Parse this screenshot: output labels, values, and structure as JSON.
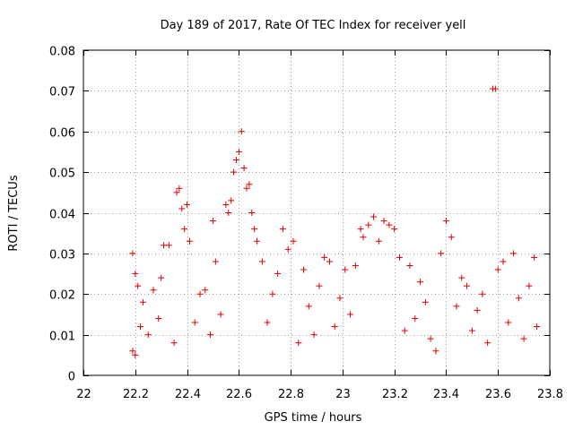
{
  "chart_data": {
    "type": "scatter",
    "title": "Day 189 of 2017, Rate Of TEC Index for receiver yell",
    "xlabel": "GPS time / hours",
    "ylabel": "ROTI / TECUs",
    "xlim": [
      22,
      23.8
    ],
    "ylim": [
      0,
      0.08
    ],
    "x_ticks": [
      22,
      22.2,
      22.4,
      22.6,
      22.8,
      23,
      23.2,
      23.4,
      23.6,
      23.8
    ],
    "x_tick_labels": [
      "22",
      "22.2",
      "22.4",
      "22.6",
      "22.8",
      "23",
      "23.2",
      "23.4",
      "23.6",
      "23.8"
    ],
    "y_ticks": [
      0,
      0.01,
      0.02,
      0.03,
      0.04,
      0.05,
      0.06,
      0.07,
      0.08
    ],
    "y_tick_labels": [
      "0",
      "0.01",
      "0.02",
      "0.03",
      "0.04",
      "0.05",
      "0.06",
      "0.07",
      "0.08"
    ],
    "grid": true,
    "marker": "+",
    "color": "#e00000",
    "series": [
      {
        "name": "ROTI",
        "points": [
          [
            22.19,
            0.03
          ],
          [
            22.19,
            0.006
          ],
          [
            22.2,
            0.005
          ],
          [
            22.2,
            0.025
          ],
          [
            22.21,
            0.022
          ],
          [
            22.22,
            0.012
          ],
          [
            22.23,
            0.018
          ],
          [
            22.25,
            0.01
          ],
          [
            22.27,
            0.021
          ],
          [
            22.29,
            0.014
          ],
          [
            22.3,
            0.024
          ],
          [
            22.31,
            0.032
          ],
          [
            22.33,
            0.032
          ],
          [
            22.35,
            0.008
          ],
          [
            22.36,
            0.045
          ],
          [
            22.37,
            0.046
          ],
          [
            22.38,
            0.041
          ],
          [
            22.39,
            0.036
          ],
          [
            22.4,
            0.042
          ],
          [
            22.41,
            0.033
          ],
          [
            22.43,
            0.013
          ],
          [
            22.45,
            0.02
          ],
          [
            22.47,
            0.021
          ],
          [
            22.49,
            0.01
          ],
          [
            22.5,
            0.038
          ],
          [
            22.51,
            0.028
          ],
          [
            22.53,
            0.015
          ],
          [
            22.55,
            0.042
          ],
          [
            22.56,
            0.04
          ],
          [
            22.57,
            0.043
          ],
          [
            22.58,
            0.05
          ],
          [
            22.59,
            0.053
          ],
          [
            22.6,
            0.055
          ],
          [
            22.61,
            0.06
          ],
          [
            22.62,
            0.051
          ],
          [
            22.63,
            0.046
          ],
          [
            22.64,
            0.047
          ],
          [
            22.65,
            0.04
          ],
          [
            22.66,
            0.036
          ],
          [
            22.67,
            0.033
          ],
          [
            22.69,
            0.028
          ],
          [
            22.71,
            0.013
          ],
          [
            22.73,
            0.02
          ],
          [
            22.75,
            0.025
          ],
          [
            22.77,
            0.036
          ],
          [
            22.79,
            0.031
          ],
          [
            22.81,
            0.033
          ],
          [
            22.83,
            0.008
          ],
          [
            22.85,
            0.026
          ],
          [
            22.87,
            0.017
          ],
          [
            22.89,
            0.01
          ],
          [
            22.91,
            0.022
          ],
          [
            22.93,
            0.029
          ],
          [
            22.95,
            0.028
          ],
          [
            22.97,
            0.012
          ],
          [
            22.99,
            0.019
          ],
          [
            23.01,
            0.026
          ],
          [
            23.03,
            0.015
          ],
          [
            23.05,
            0.027
          ],
          [
            23.07,
            0.036
          ],
          [
            23.08,
            0.034
          ],
          [
            23.1,
            0.037
          ],
          [
            23.12,
            0.039
          ],
          [
            23.14,
            0.033
          ],
          [
            23.16,
            0.038
          ],
          [
            23.18,
            0.037
          ],
          [
            23.2,
            0.036
          ],
          [
            23.22,
            0.029
          ],
          [
            23.24,
            0.011
          ],
          [
            23.26,
            0.027
          ],
          [
            23.28,
            0.014
          ],
          [
            23.3,
            0.023
          ],
          [
            23.32,
            0.018
          ],
          [
            23.34,
            0.009
          ],
          [
            23.36,
            0.006
          ],
          [
            23.38,
            0.03
          ],
          [
            23.4,
            0.038
          ],
          [
            23.42,
            0.034
          ],
          [
            23.44,
            0.017
          ],
          [
            23.46,
            0.024
          ],
          [
            23.48,
            0.022
          ],
          [
            23.5,
            0.011
          ],
          [
            23.52,
            0.016
          ],
          [
            23.54,
            0.02
          ],
          [
            23.56,
            0.008
          ],
          [
            23.58,
            0.0705
          ],
          [
            23.59,
            0.0705
          ],
          [
            23.6,
            0.026
          ],
          [
            23.62,
            0.028
          ],
          [
            23.64,
            0.013
          ],
          [
            23.66,
            0.03
          ],
          [
            23.68,
            0.019
          ],
          [
            23.7,
            0.009
          ],
          [
            23.72,
            0.022
          ],
          [
            23.74,
            0.029
          ],
          [
            23.75,
            0.012
          ]
        ]
      }
    ]
  }
}
